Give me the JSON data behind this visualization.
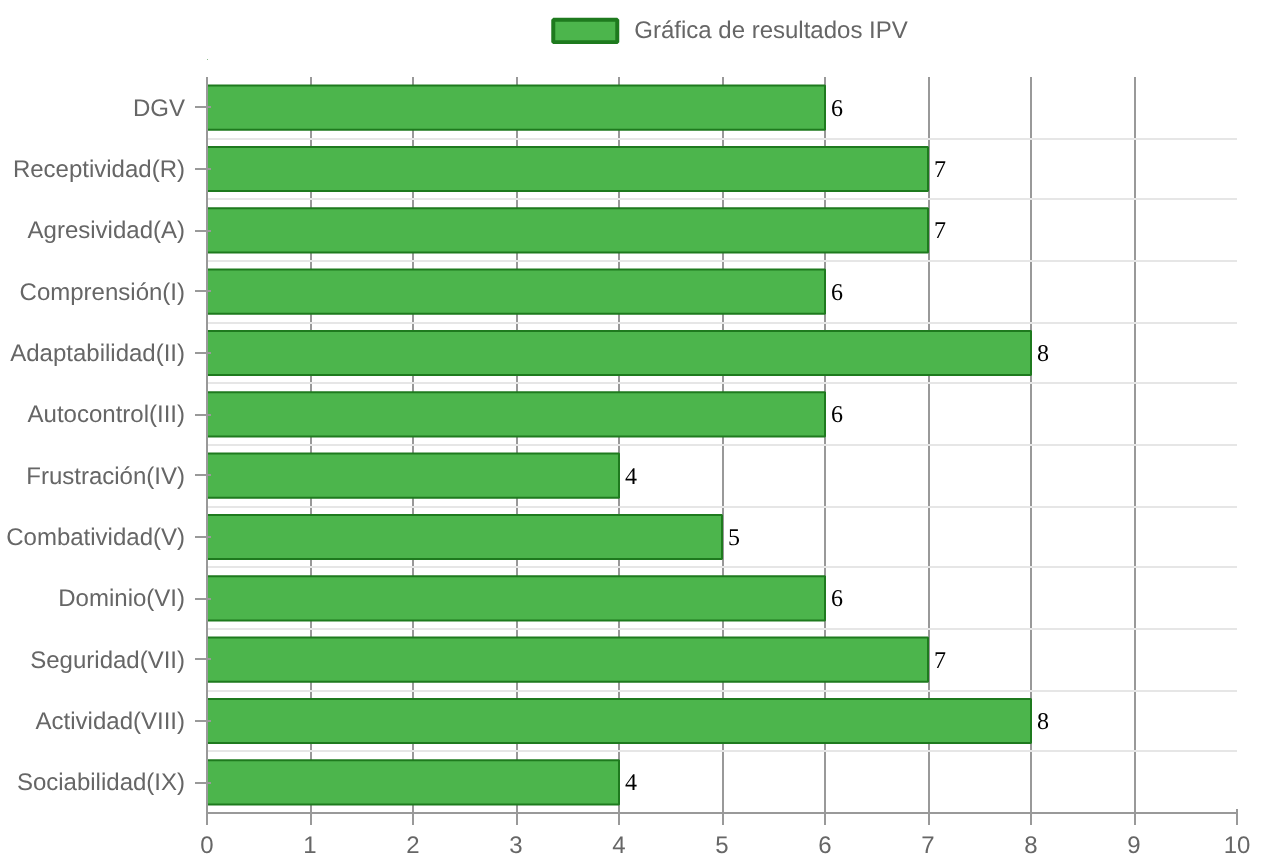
{
  "chart_data": {
    "type": "bar",
    "orientation": "horizontal",
    "categories": [
      "DGV",
      "Receptividad(R)",
      "Agresividad(A)",
      "Comprensión(I)",
      "Adaptabilidad(II)",
      "Autocontrol(III)",
      "Frustración(IV)",
      "Combatividad(V)",
      "Dominio(VI)",
      "Seguridad(VII)",
      "Actividad(VIII)",
      "Sociabilidad(IX)"
    ],
    "series": [
      {
        "name": "Gráfica de resultados IPV",
        "color": "#4cb54c",
        "values": [
          6,
          7,
          7,
          6,
          8,
          6,
          4,
          5,
          6,
          7,
          8,
          4
        ]
      }
    ],
    "xlim": [
      0,
      10
    ],
    "xticks": [
      0,
      1,
      2,
      3,
      4,
      5,
      6,
      7,
      8,
      9,
      10
    ],
    "grid": true,
    "legend": "top",
    "data_labels": true
  }
}
